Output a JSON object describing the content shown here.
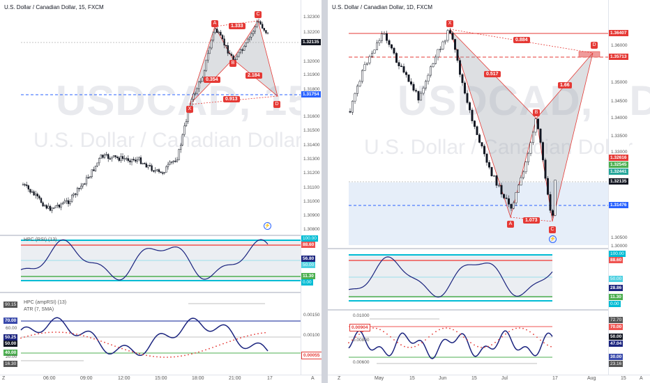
{
  "left": {
    "title": "U.S. Dollar / Canadian Dollar, 15, FXCM",
    "watermark_symbol": "USDCAD, 15",
    "watermark_name": "U.S. Dollar / Canadian Dollar",
    "price_ticks": [
      "1.32300",
      "1.32200",
      "1.32100",
      "1.32000",
      "1.31900",
      "1.31800",
      "1.31700",
      "1.31600",
      "1.31500",
      "1.31400",
      "1.31300",
      "1.31200",
      "1.31100",
      "1.31000",
      "1.30900",
      "1.30800"
    ],
    "symbol_tag": "USDCAD",
    "current_price": "1.32135",
    "blue_level": "1.31754",
    "points": [
      "A",
      "B",
      "C",
      "X",
      "D"
    ],
    "ratios": [
      "1.333",
      "0.354",
      "2.184",
      "0.913"
    ],
    "rsi_label": "HPC (RSI) (13)",
    "rsi_ticks": [
      "100.00",
      "88.60",
      "56.80",
      "50.00",
      "11.30",
      "0.00"
    ],
    "amp_label": "HPC (ampRSI) (13)",
    "atr_label": "ATR (7, SMA)",
    "amp_ticks": [
      "90.15",
      "70.00",
      "60.00",
      "50.25",
      "50.00",
      "40.00",
      "30.00",
      "20.00",
      "16.30"
    ],
    "atr_ticks": [
      "0.00150",
      "0.00100",
      "0.00055"
    ],
    "time_labels": [
      "06:00",
      "09:00",
      "12:00",
      "15:00",
      "18:00",
      "21:00",
      "17"
    ],
    "corner_left": "Z",
    "corner_right": "A"
  },
  "right": {
    "title": "U.S. Dollar / Canadian Dollar, 1D, FXCM",
    "watermark_symbol": "USDCAD, 1D",
    "watermark_name": "U.S. Dollar / Canadian Dollar",
    "price_ticks": [
      "1.36000",
      "1.35500",
      "1.35000",
      "1.34500",
      "1.34000",
      "1.33500",
      "1.33000",
      "1.32500",
      "1.32000",
      "1.31500",
      "1.31000",
      "1.30500",
      "1.30000"
    ],
    "level_top": "1.36407",
    "level_d": "1.35713",
    "level_a": "1.32616",
    "level_b": "1.32545",
    "level_c": "1.32441",
    "symbol_tag": "USDCAD",
    "current_price": "1.32135",
    "blue_level": "1.31476",
    "points": [
      "X",
      "A",
      "B",
      "C",
      "D"
    ],
    "ratios": [
      "0.884",
      "0.517",
      "1.66",
      "1.073"
    ],
    "rsi_ticks": [
      "100.00",
      "88.60",
      "50.00",
      "28.86",
      "11.30",
      "0.00"
    ],
    "amp_ticks": [
      "0.01000",
      "0.00904",
      "0.00800",
      "0.00600"
    ],
    "amp_right_ticks": [
      "72.70",
      "70.00",
      "50.00",
      "47.04",
      "30.00",
      "23.16"
    ],
    "time_labels": [
      "May",
      "15",
      "Jun",
      "15",
      "Jul",
      "17",
      "Aug",
      "15"
    ],
    "corner_left": "Z",
    "corner_right": "A"
  }
}
